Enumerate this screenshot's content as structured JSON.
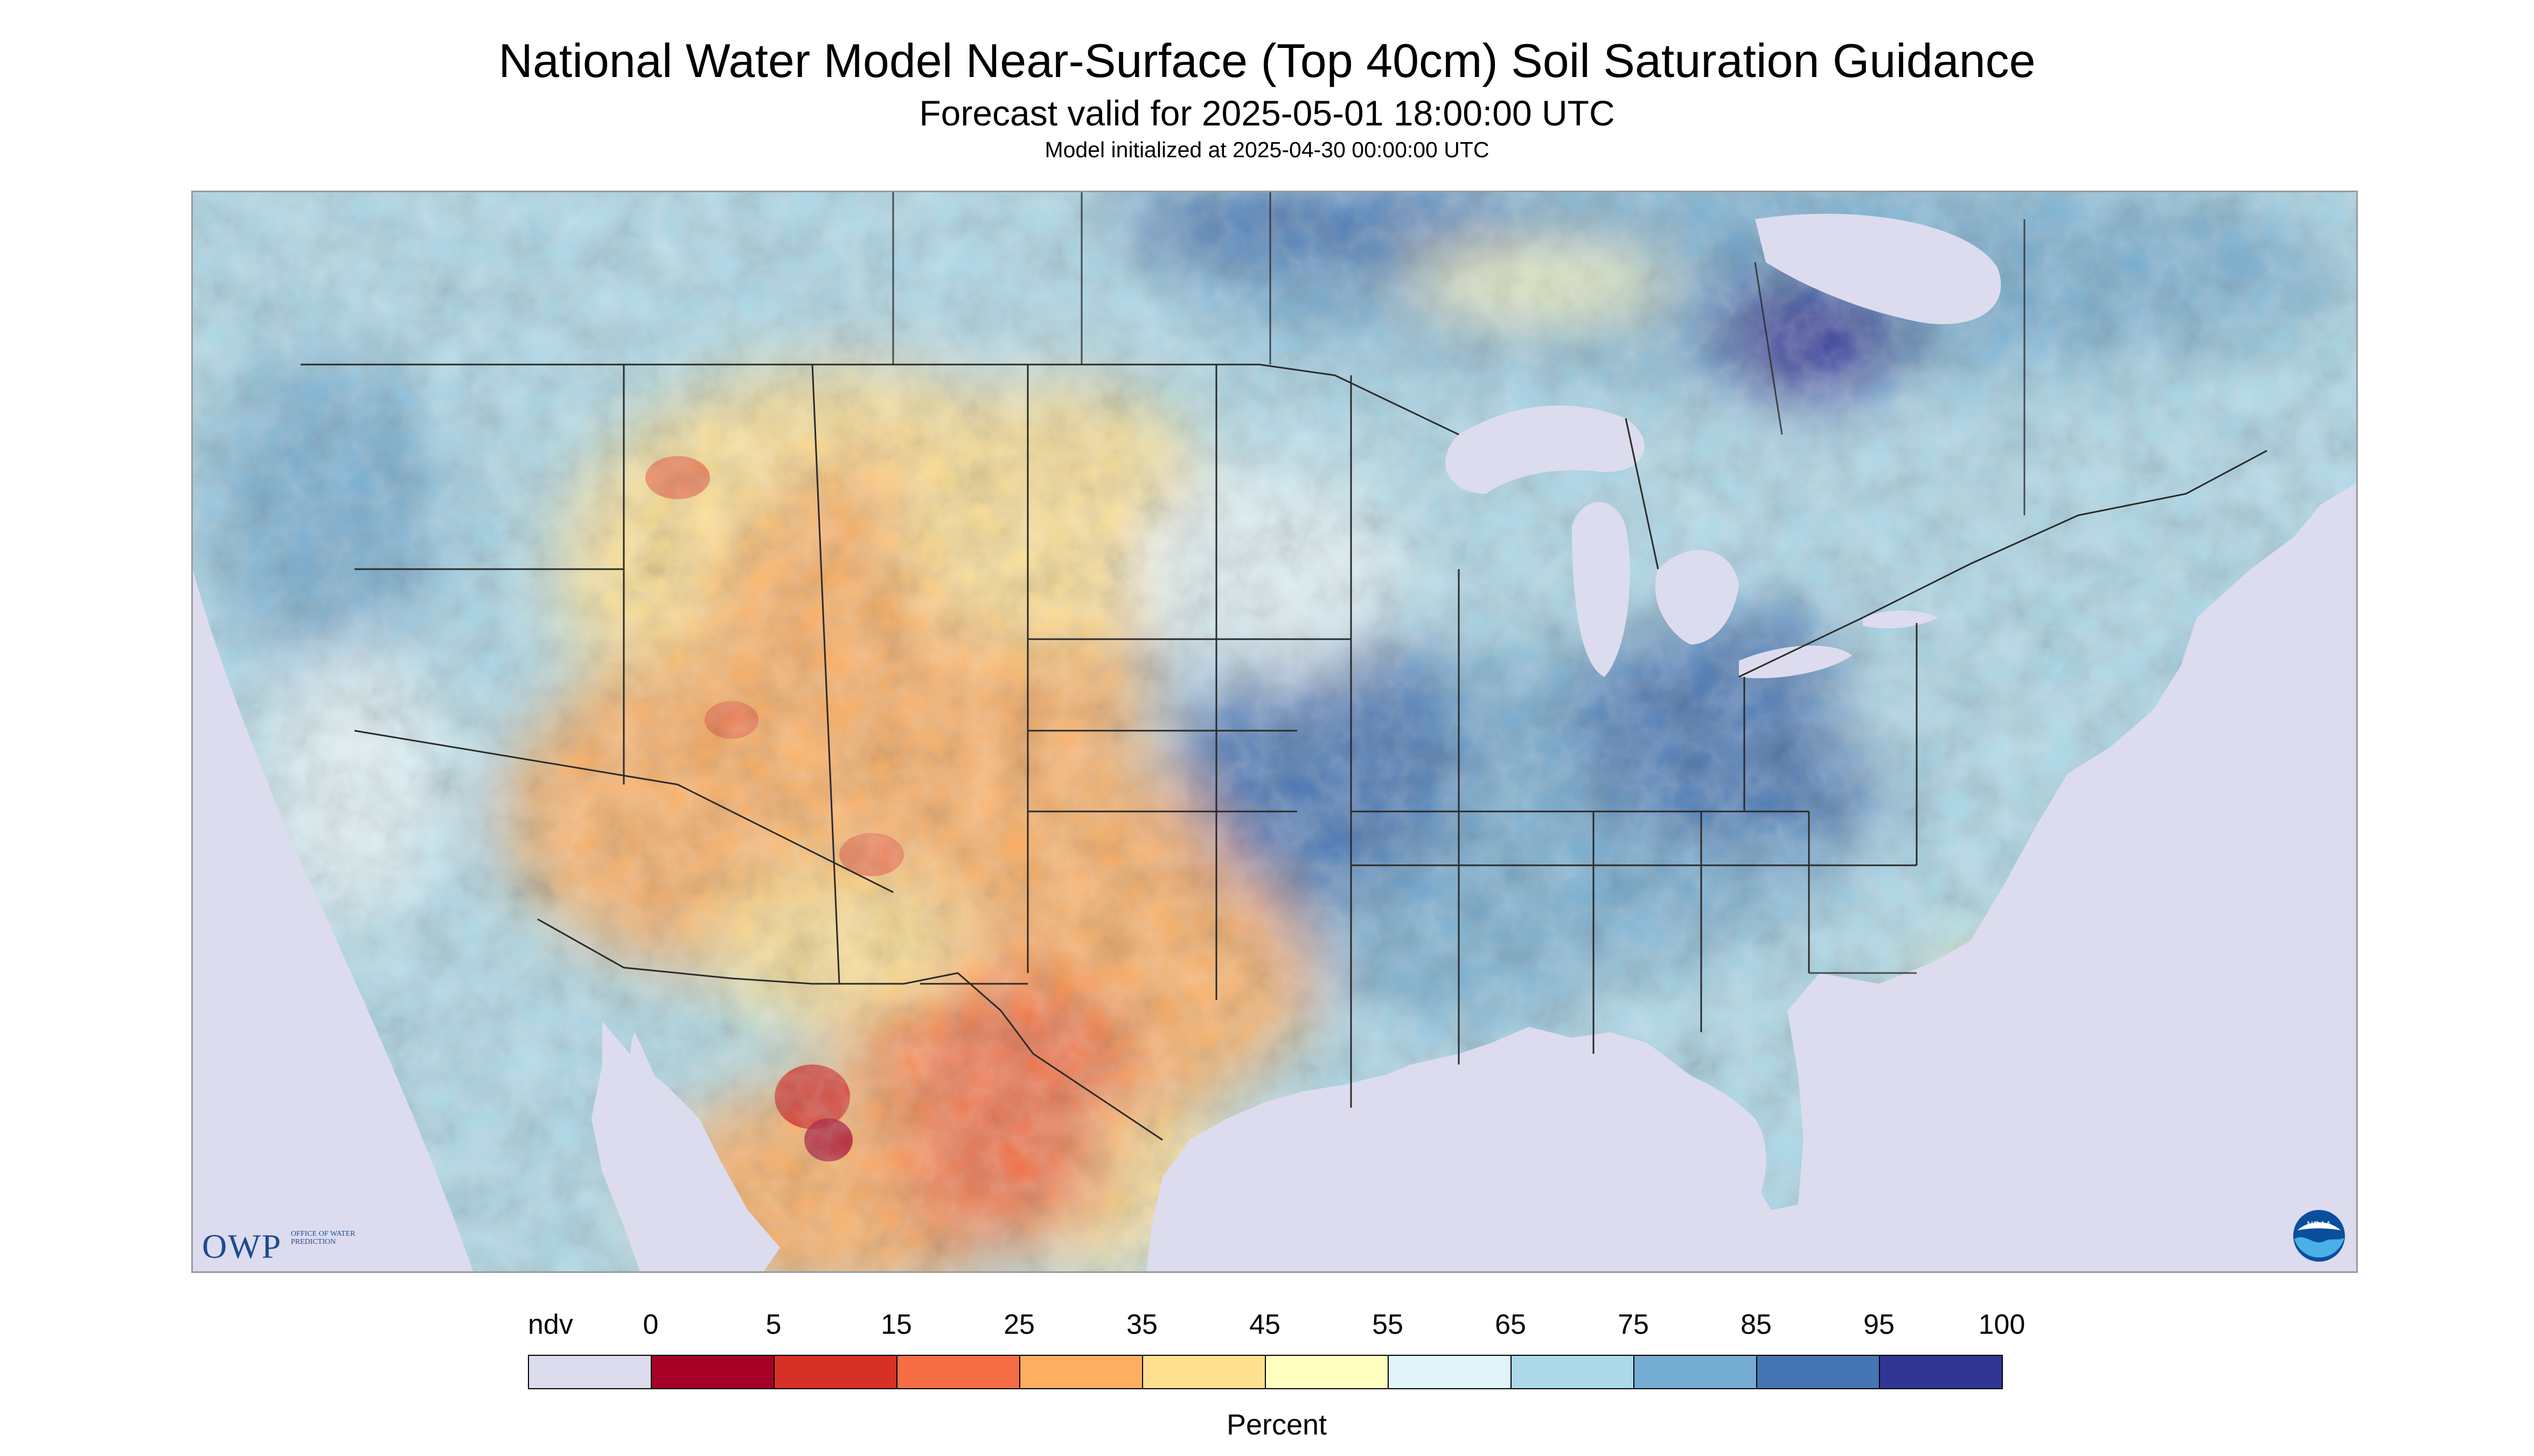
{
  "header": {
    "title": "National Water Model Near-Surface (Top 40cm) Soil Saturation Guidance",
    "subtitle": "Forecast valid for 2025-05-01 18:00:00 UTC",
    "init": "Model initialized at 2025-04-30 00:00:00 UTC"
  },
  "colors": {
    "ndv": "#dcdcee",
    "water": "#dcdcee",
    "border": "#2b2b2b"
  },
  "legend": {
    "labels": [
      "ndv",
      "0",
      "5",
      "15",
      "25",
      "35",
      "45",
      "55",
      "65",
      "75",
      "85",
      "95",
      "100"
    ],
    "bins": [
      {
        "color": "#dcdcee"
      },
      {
        "color": "#a50026"
      },
      {
        "color": "#d73027"
      },
      {
        "color": "#f46d43"
      },
      {
        "color": "#fdae61"
      },
      {
        "color": "#fee090"
      },
      {
        "color": "#ffffbf"
      },
      {
        "color": "#e0f3f8"
      },
      {
        "color": "#abd9e9"
      },
      {
        "color": "#74add1"
      },
      {
        "color": "#4575b4"
      },
      {
        "color": "#313695"
      }
    ],
    "unit": "Percent"
  },
  "logos": {
    "owp_letters": "OWP",
    "owp_full": "OFFICE OF WATER PREDICTION",
    "noaa": "NOAA"
  }
}
